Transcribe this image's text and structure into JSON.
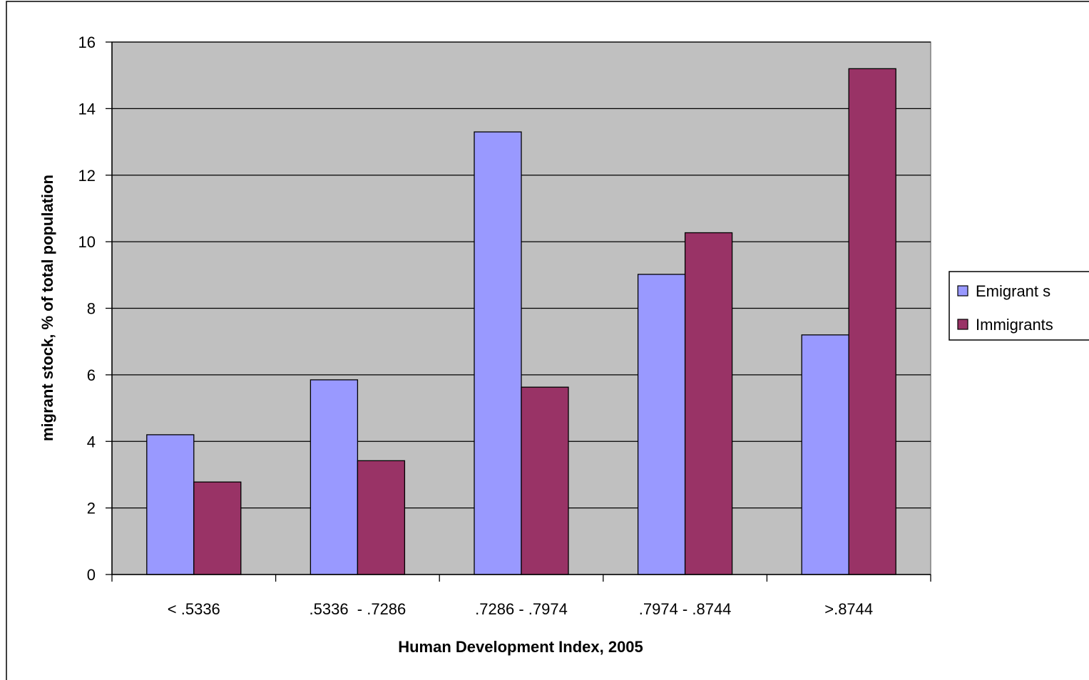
{
  "chart_data": {
    "type": "bar",
    "title": "",
    "xlabel": "Human Development Index, 2005",
    "ylabel": "migrant stock, % of total population",
    "categories": [
      "< .5336",
      ".5336  - .7286",
      ".7286 - .7974",
      ".7974 - .8744",
      ">.8744"
    ],
    "series": [
      {
        "name": "Emigrant s",
        "color": "#9999ff",
        "values": [
          4.2,
          5.85,
          13.3,
          9.02,
          7.2
        ]
      },
      {
        "name": "Immigrants",
        "color": "#993366",
        "values": [
          2.78,
          3.42,
          5.63,
          10.27,
          15.2
        ]
      }
    ],
    "ylim": [
      0,
      16
    ],
    "yticks": [
      "0",
      "2",
      "4",
      "6",
      "8",
      "10",
      "12",
      "14",
      "16"
    ],
    "grid": true,
    "plot_background": "#c0c0c0",
    "legend_position": "right"
  }
}
